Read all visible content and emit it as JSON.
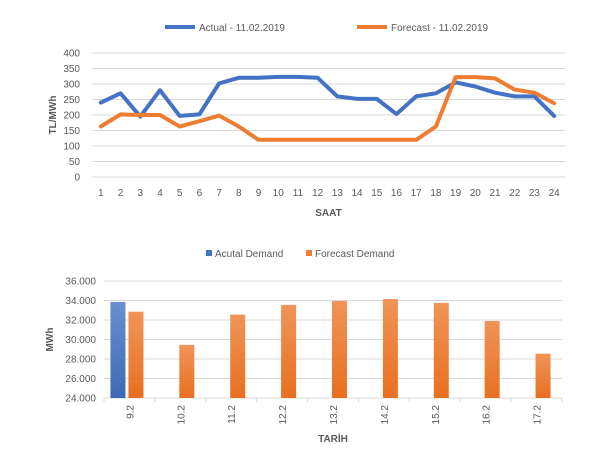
{
  "chart_data": [
    {
      "type": "line",
      "title": "",
      "xlabel": "SAAT",
      "ylabel": "TL/MWh",
      "ylim": [
        0,
        400
      ],
      "yticks": [
        0,
        50,
        100,
        150,
        200,
        250,
        300,
        350,
        400
      ],
      "x": [
        "1",
        "2",
        "3",
        "4",
        "5",
        "6",
        "7",
        "8",
        "9",
        "10",
        "11",
        "12",
        "13",
        "14",
        "15",
        "16",
        "17",
        "18",
        "19",
        "20",
        "21",
        "22",
        "23",
        "24"
      ],
      "legend_position": "top",
      "grid": true,
      "series": [
        {
          "name": "Actual - 11.02.2019",
          "color": "#4472C4",
          "values": [
            240,
            270,
            195,
            280,
            197,
            202,
            302,
            320,
            320,
            323,
            323,
            320,
            260,
            252,
            252,
            203,
            260,
            270,
            305,
            292,
            272,
            260,
            260,
            197
          ]
        },
        {
          "name": "Forecast - 11.02.2019",
          "color": "#ED7D31",
          "values": [
            163,
            202,
            200,
            200,
            163,
            180,
            198,
            163,
            120,
            120,
            120,
            120,
            120,
            120,
            120,
            120,
            120,
            163,
            322,
            322,
            318,
            282,
            272,
            238
          ]
        }
      ]
    },
    {
      "type": "bar",
      "title": "",
      "xlabel": "TARİH",
      "ylabel": "MWh",
      "ylim": [
        24000,
        36000
      ],
      "yticks": [
        "24.000",
        "26.000",
        "28.000",
        "30.000",
        "32.000",
        "34.000",
        "36.000"
      ],
      "yticks_values": [
        24000,
        26000,
        28000,
        30000,
        32000,
        34000,
        36000
      ],
      "categories": [
        "9.2",
        "10.2",
        "11.2",
        "12.2",
        "13.2",
        "14.2",
        "15.2",
        "16.2",
        "17.2"
      ],
      "legend_position": "top",
      "grid": true,
      "series": [
        {
          "name": "Acutal Demand",
          "color": "#4472C4",
          "values": [
            33850,
            null,
            null,
            null,
            null,
            null,
            null,
            null,
            null
          ]
        },
        {
          "name": "Forecast Demand",
          "color": "#ED7D31",
          "values": [
            32850,
            29450,
            32550,
            33550,
            33950,
            34150,
            33750,
            31900,
            28550
          ]
        }
      ]
    }
  ]
}
